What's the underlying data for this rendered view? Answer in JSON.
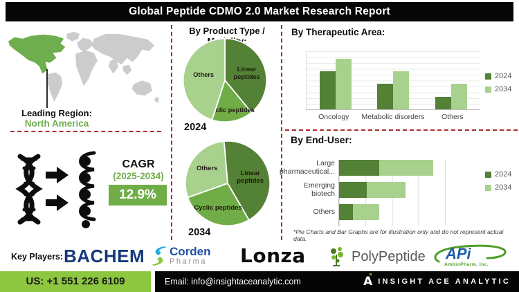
{
  "banner": {
    "title": "Global Peptide CDMO 2.0 Market Research Report"
  },
  "map_section": {
    "leading_region_label": "Leading Region:",
    "leading_region_value": "North America"
  },
  "cagr_section": {
    "label": "CAGR",
    "period": "(2025-2034)",
    "value": "12.9%"
  },
  "chart_data": [
    {
      "id": "product_type_2024",
      "type": "pie",
      "title": "By Product Type / Modality:",
      "year_label": "2024",
      "start_angle": 0,
      "slices": [
        {
          "label": "Linear peptides",
          "value": 39,
          "color": "#538135",
          "wrap": true,
          "label_r": 0.56
        },
        {
          "label": "Cyclic peptides",
          "value": 16,
          "color": "#70ad47",
          "wrap": false,
          "label_r": 0.78
        },
        {
          "label": "Others",
          "value": 45,
          "color": "#a9d18e",
          "wrap": false,
          "label_r": 0.52
        }
      ]
    },
    {
      "id": "product_type_2034",
      "type": "pie",
      "year_label": "2034",
      "start_angle": -5,
      "slices": [
        {
          "label": "Linear peptides",
          "value": 43,
          "color": "#538135",
          "wrap": true,
          "label_r": 0.56
        },
        {
          "label": "Cyclic peptides",
          "value": 28,
          "color": "#70ad47",
          "wrap": false,
          "label_r": 0.66
        },
        {
          "label": "Others",
          "value": 29,
          "color": "#a9d18e",
          "wrap": false,
          "label_r": 0.58
        }
      ]
    },
    {
      "id": "therapeutic_area",
      "type": "bar",
      "title": "By Therapeutic Area:",
      "categories": [
        "Oncology",
        "Metabolic disorders",
        "Others"
      ],
      "series": [
        {
          "name": "2024",
          "color": "#538135",
          "values": [
            65,
            44,
            21
          ]
        },
        {
          "name": "2034",
          "color": "#a9d18e",
          "values": [
            87,
            66,
            44
          ]
        }
      ],
      "ylim": [
        0,
        100
      ],
      "grid": true,
      "legend_position": "right"
    },
    {
      "id": "end_user",
      "type": "bar-horizontal-stacked",
      "title": "By End-User:",
      "categories": [
        "Large pharmaceutical...",
        "Emerging biotech",
        "Others"
      ],
      "series": [
        {
          "name": "2024",
          "color": "#538135",
          "values": [
            38,
            26,
            13
          ]
        },
        {
          "name": "2034",
          "color": "#a9d18e",
          "values": [
            51,
            37,
            25
          ]
        }
      ],
      "xlim": [
        0,
        100
      ],
      "grid": true,
      "legend_position": "right",
      "footnote": "*Pie Charts and Bar Graphs are for illustration only and do not represent actual data."
    }
  ],
  "key_players": {
    "label": "Key Players:",
    "bachem": "BACHEM",
    "corden_line1": "Corden",
    "corden_line2": "Pharma",
    "lonza": "Lonza",
    "polypeptide": "PolyPeptide",
    "api": "APi",
    "api_sub": "AmbioPharm, Inc."
  },
  "footer": {
    "phone": "US: +1 551 226 6109",
    "email": "Email: info@insightaceanalytic.com",
    "brand": "INSIGHT ACE ANALYTIC",
    "brand_glyph": "A"
  },
  "colors": {
    "dark_green": "#538135",
    "mid_green": "#70ad47",
    "light_green": "#a9d18e",
    "region_green": "#6fae4e",
    "footer_green": "#8dc63f",
    "divider_red": "#b02b2b",
    "map_gray": "#cccccc"
  }
}
